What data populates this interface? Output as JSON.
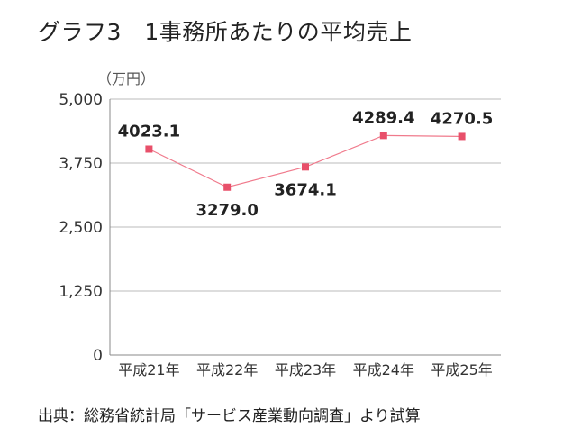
{
  "title": "グラフ3　1事務所あたりの平均売上",
  "source": "出典：総務省統計局「サービス産業動向調査」より試算",
  "chart_data": {
    "type": "line",
    "title": "グラフ3　1事務所あたりの平均売上",
    "ylabel": "（万円）",
    "xlabel": "",
    "categories": [
      "平成21年",
      "平成22年",
      "平成23年",
      "平成24年",
      "平成25年"
    ],
    "series": [
      {
        "values": [
          4023.1,
          3279.0,
          3674.1,
          4289.4,
          4270.5
        ],
        "labels": [
          "4023.1",
          "3279.0",
          "3674.1",
          "4289.4",
          "4270.5"
        ]
      }
    ],
    "ylim": [
      0,
      5000
    ],
    "yticks": [
      0,
      1250,
      2500,
      3750,
      5000
    ],
    "ytick_labels": [
      "0",
      "1,250",
      "2,500",
      "3,750",
      "5,000"
    ],
    "grid": true,
    "legend": "none",
    "colors": {
      "line": "#f07a8c",
      "marker": "#e8506a",
      "grid": "#bbbbbb",
      "axis": "#888888"
    }
  }
}
